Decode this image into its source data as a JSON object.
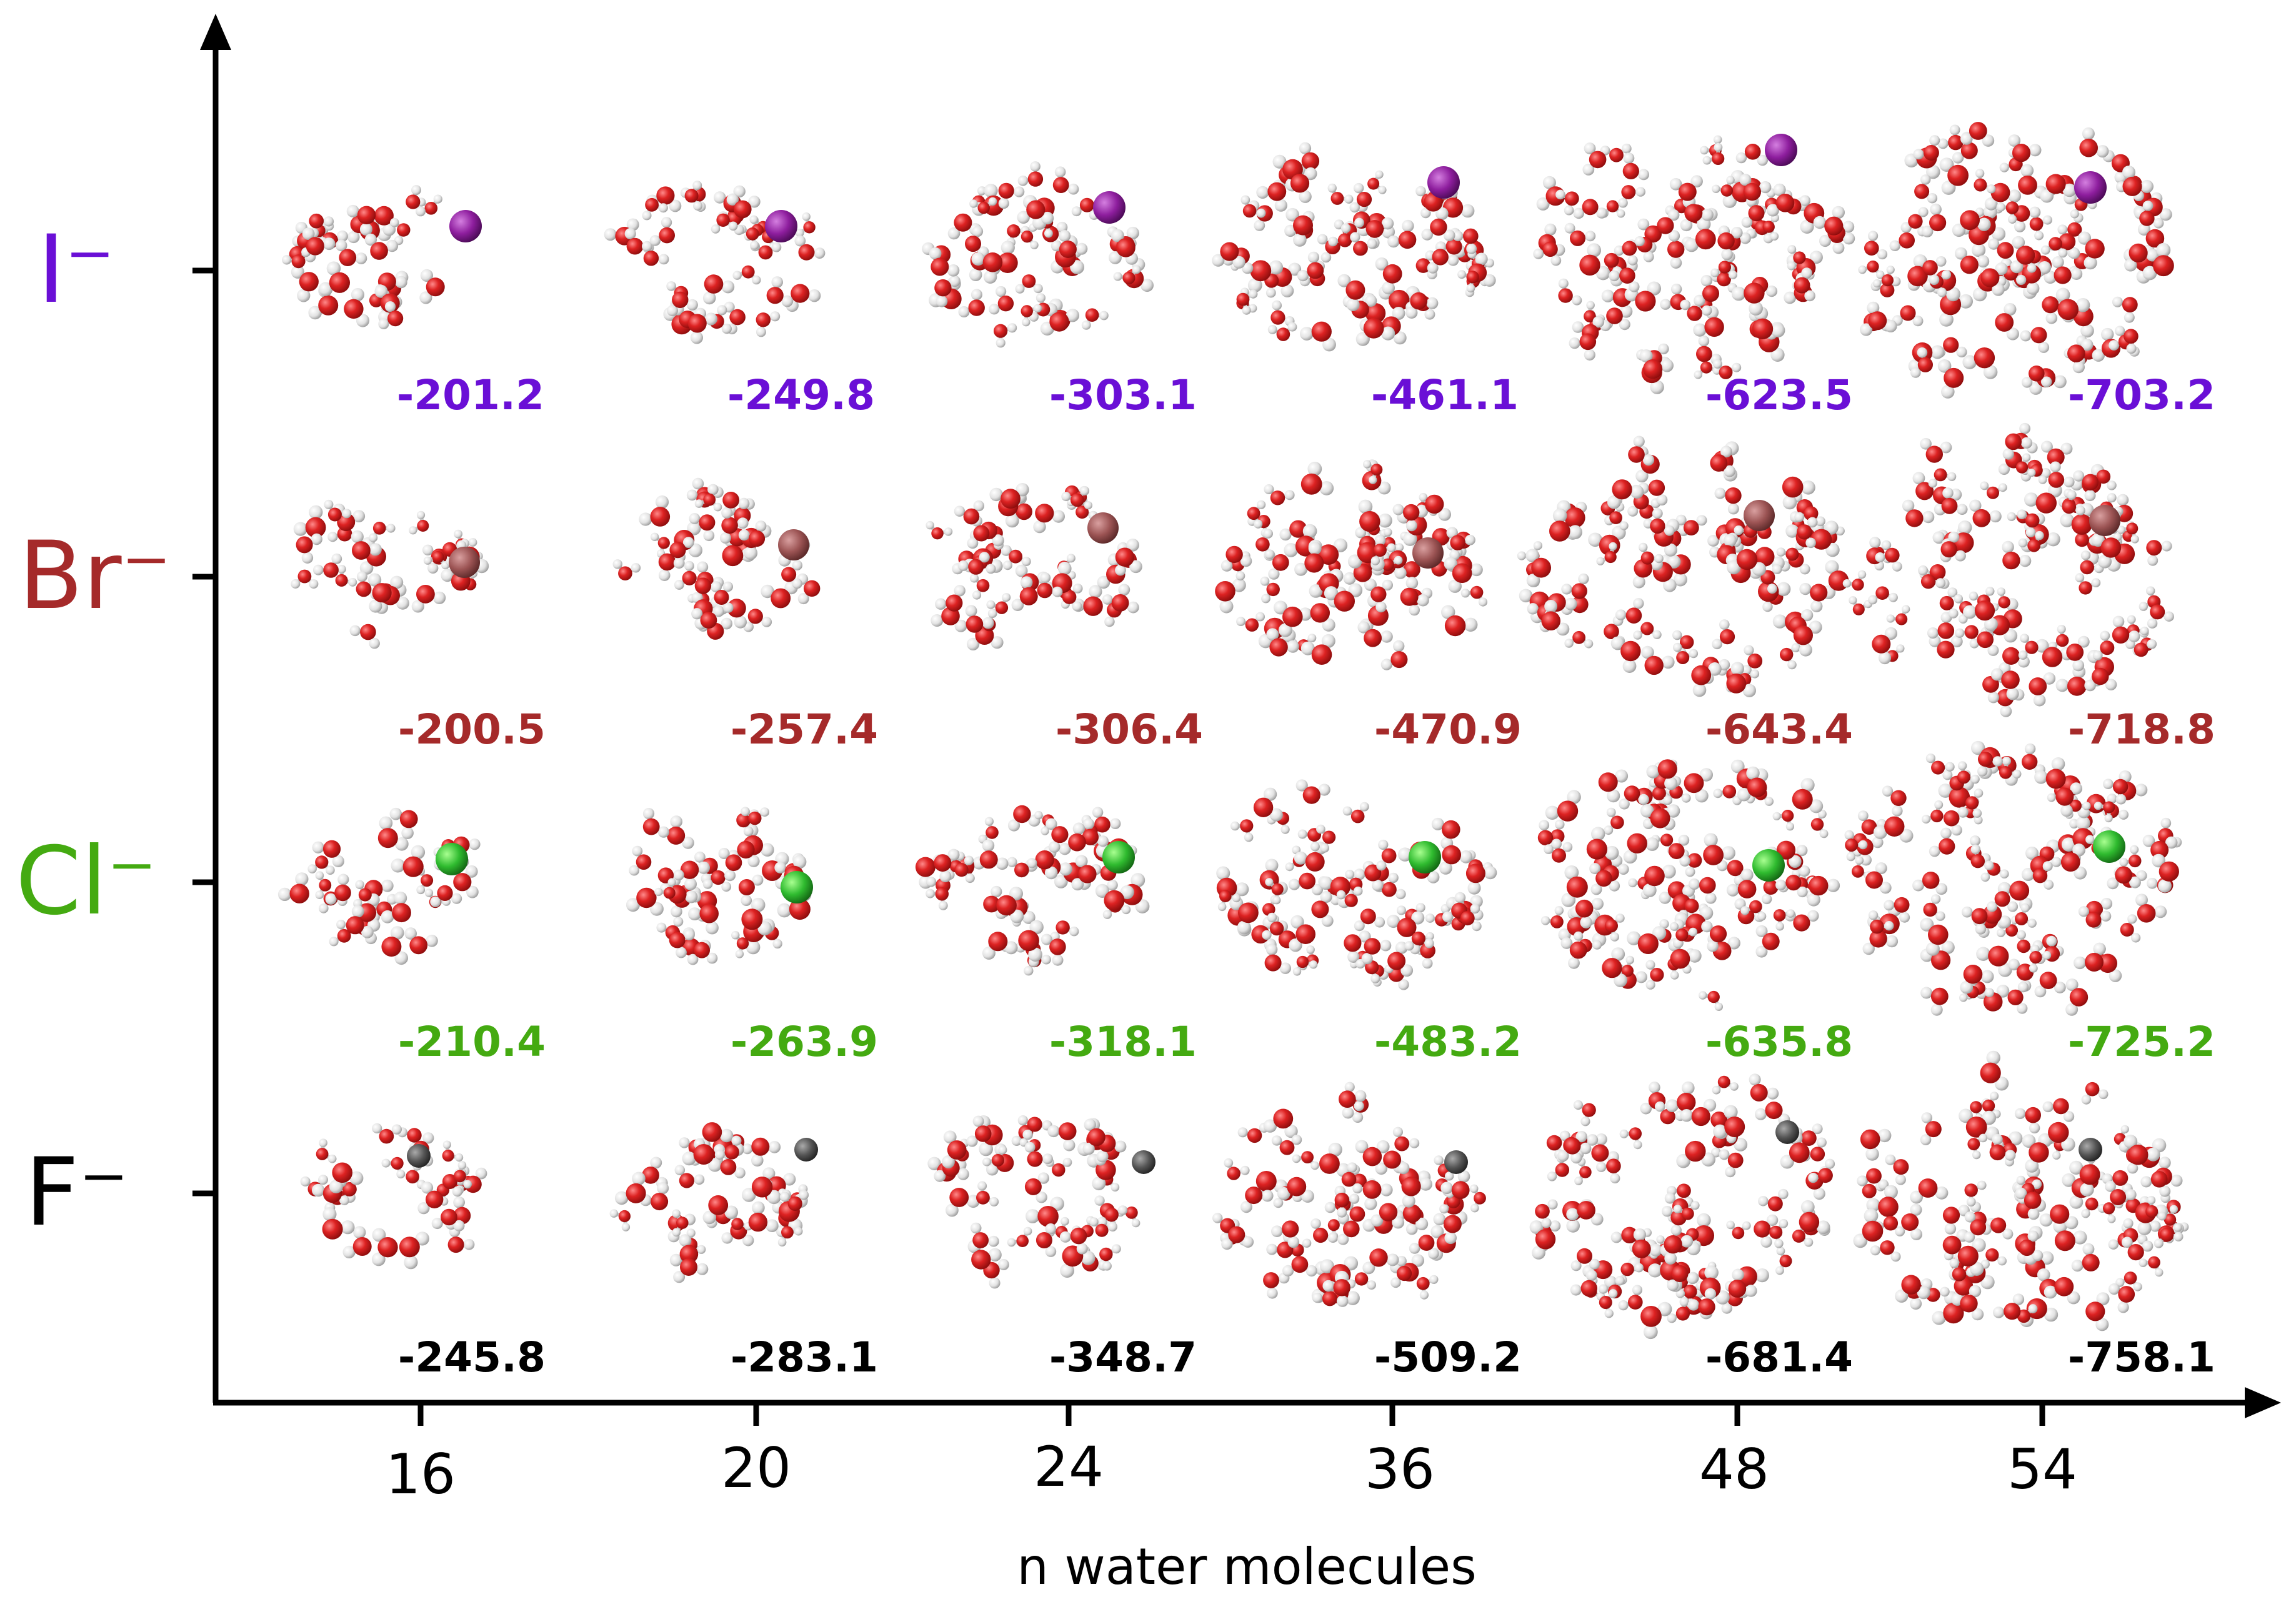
{
  "chart_data": {
    "type": "table",
    "xlabel": "n water molecules",
    "x_categories": [
      "16",
      "20",
      "24",
      "36",
      "48",
      "54"
    ],
    "rows": [
      {
        "ion": "I⁻",
        "color": "#6a0fd6",
        "energies": [
          "-201.2",
          "-249.8",
          "-303.1",
          "-461.1",
          "-623.5",
          "-703.2"
        ]
      },
      {
        "ion": "Br⁻",
        "color": "#a52a2a",
        "energies": [
          "-200.5",
          "-257.4",
          "-306.4",
          "-470.9",
          "-643.4",
          "-718.8"
        ]
      },
      {
        "ion": "Cl⁻",
        "color": "#44aa11",
        "energies": [
          "-210.4",
          "-263.9",
          "-318.1",
          "-483.2",
          "-635.8",
          "-725.2"
        ]
      },
      {
        "ion": "F⁻",
        "color": "#000000",
        "energies": [
          "-245.8",
          "-283.1",
          "-348.7",
          "-509.2",
          "-681.4",
          "-758.1"
        ]
      }
    ]
  },
  "ion_sphere_colors": [
    "#8e1e9e",
    "#9c5454",
    "#2fbb2f",
    "#555555"
  ],
  "oxygen_color": "#d42020",
  "hydrogen_color": "#e6e6e6"
}
